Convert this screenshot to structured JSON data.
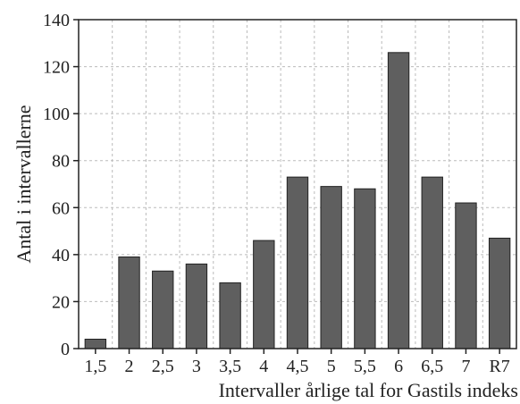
{
  "chart_data": {
    "type": "bar",
    "xlabel": "Intervaller årlige tal for Gastils indeks",
    "ylabel": "Antal i intervallerne",
    "categories": [
      "1,5",
      "2",
      "2,5",
      "3",
      "3,5",
      "4",
      "4,5",
      "5",
      "5,5",
      "6",
      "6,5",
      "7",
      "R7"
    ],
    "values": [
      4,
      39,
      33,
      36,
      28,
      46,
      73,
      69,
      68,
      126,
      73,
      62,
      47
    ],
    "ylim": [
      0,
      140
    ],
    "yticks": [
      0,
      20,
      40,
      60,
      80,
      100,
      120,
      140
    ],
    "grid": true,
    "bar_color": "#5f5f5f",
    "bar_edge_color": "#222222",
    "grid_color": "#bbbbbb"
  }
}
